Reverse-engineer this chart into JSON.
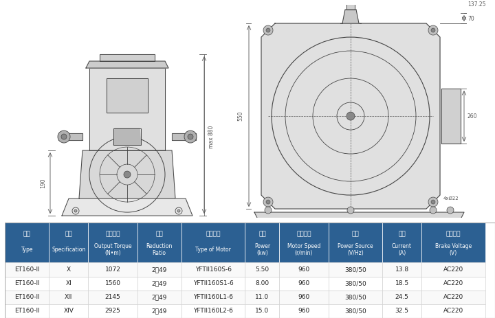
{
  "title": "",
  "bg_color": "#ffffff",
  "table_header_bg": "#2c6092",
  "table_header_fg": "#ffffff",
  "table_row_bg1": "#ffffff",
  "table_row_bg2": "#f5f5f5",
  "table_line_color": "#cccccc",
  "headers_zh": [
    "型号",
    "规格",
    "输出扭矩",
    "速比",
    "电机型号",
    "功率",
    "电机转速",
    "电源",
    "电流",
    "制动电压"
  ],
  "headers_en": [
    "Type",
    "Specification",
    "Output Torque\n(N•m)",
    "Reduction\nRatio",
    "Type of Motor",
    "Power\n(kw)",
    "Motor Speed\n(r/min)",
    "Power Source\n(V/Hz)",
    "Current\n(A)",
    "Brake Voltage\n(V)"
  ],
  "rows": [
    [
      "ET160-II",
      "X",
      "1072",
      "2：49",
      "YFTII160S-6",
      "5.50",
      "960",
      "380/50",
      "13.8",
      "AC220"
    ],
    [
      "ET160-II",
      "XI",
      "1560",
      "2：49",
      "YFTII160S1-6",
      "8.00",
      "960",
      "380/50",
      "18.5",
      "AC220"
    ],
    [
      "ET160-II",
      "XII",
      "2145",
      "2：49",
      "YFTII160L1-6",
      "11.0",
      "960",
      "380/50",
      "24.5",
      "AC220"
    ],
    [
      "ET160-II",
      "XIV",
      "2925",
      "2：49",
      "YFTII160L2-6",
      "15.0",
      "960",
      "380/50",
      "32.5",
      "AC220"
    ]
  ],
  "dim_color": "#555555",
  "drawing_line_color": "#444444",
  "drawing_bg": "#ffffff"
}
